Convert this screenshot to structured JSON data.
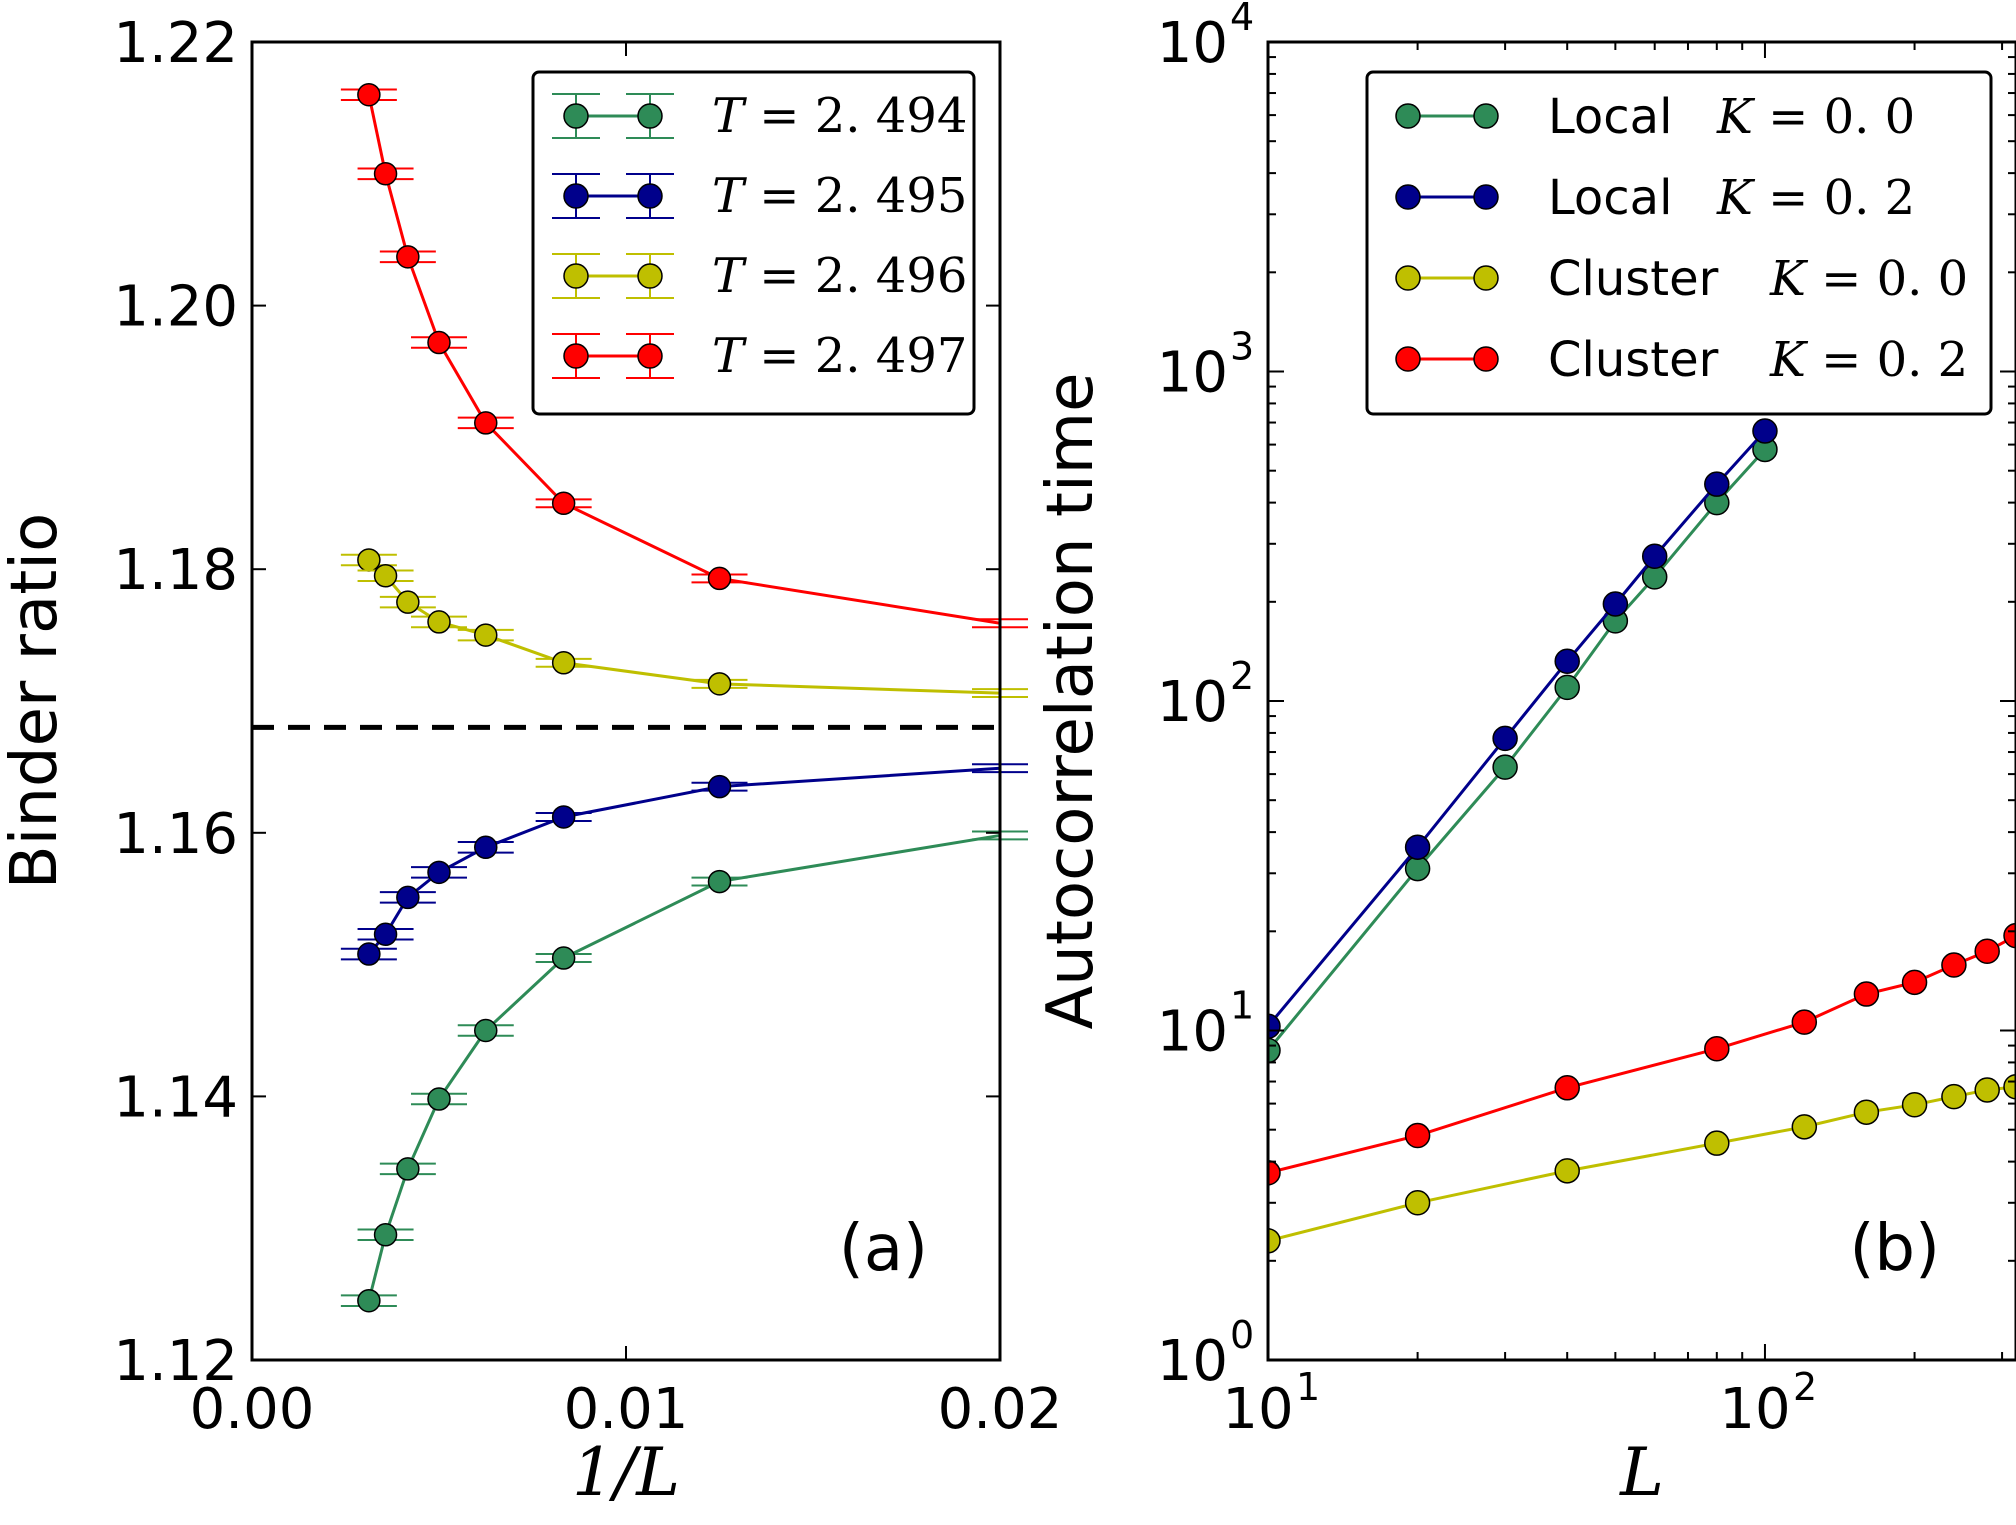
{
  "chart_data": [
    {
      "type": "line",
      "panel_label": "(a)",
      "xlabel": "1/L",
      "ylabel": "Binder ratio",
      "xlim": [
        0.0,
        0.02
      ],
      "ylim": [
        1.12,
        1.22
      ],
      "xticks": [
        0.0,
        0.01,
        0.02
      ],
      "xtick_labels": [
        "0.00",
        "0.01",
        "0.02"
      ],
      "yticks": [
        1.12,
        1.14,
        1.16,
        1.18,
        1.2,
        1.22
      ],
      "ytick_labels": [
        "1.12",
        "1.14",
        "1.16",
        "1.18",
        "1.20",
        "1.22"
      ],
      "grid": false,
      "legend_position": "top-right",
      "x": [
        0.003125,
        0.003571,
        0.004167,
        0.005,
        0.00625,
        0.008333,
        0.0125,
        0.02
      ],
      "series": [
        {
          "name": "T=2.494",
          "color": "#2e8b57",
          "values": [
            1.1245,
            1.1295,
            1.1345,
            1.1398,
            1.145,
            1.1505,
            1.1563,
            1.1598
          ],
          "errors": [
            0.0004,
            0.0004,
            0.0004,
            0.0004,
            0.0004,
            0.0003,
            0.0003,
            0.0003
          ]
        },
        {
          "name": "T=2.495",
          "color": "#00008b",
          "values": [
            1.1508,
            1.1523,
            1.1551,
            1.157,
            1.1589,
            1.1612,
            1.1635,
            1.1649
          ],
          "errors": [
            0.0004,
            0.0004,
            0.0004,
            0.0004,
            0.0004,
            0.0003,
            0.0003,
            0.0003
          ]
        },
        {
          "name": "T=2.496",
          "color": "#bfbf00",
          "values": [
            1.1807,
            1.1795,
            1.1775,
            1.176,
            1.175,
            1.1729,
            1.1713,
            1.1706
          ],
          "errors": [
            0.0004,
            0.0004,
            0.0004,
            0.0004,
            0.0004,
            0.0003,
            0.0003,
            0.0003
          ]
        },
        {
          "name": "T=2.497",
          "color": "#ff0000",
          "values": [
            1.216,
            1.21,
            1.2037,
            1.1972,
            1.1911,
            1.185,
            1.1793,
            1.1759
          ],
          "errors": [
            0.0004,
            0.0004,
            0.0004,
            0.0004,
            0.0004,
            0.0003,
            0.0003,
            0.0003
          ]
        }
      ],
      "reference_line": {
        "y": 1.168,
        "style": "dashed",
        "color": "#000000"
      }
    },
    {
      "type": "line",
      "panel_label": "(b)",
      "xlabel": "L",
      "ylabel": "Autocorrelation time",
      "xscale": "log",
      "yscale": "log",
      "xlim": [
        10,
        320
      ],
      "ylim": [
        1,
        10000
      ],
      "xticks": [
        10,
        100
      ],
      "xtick_labels": [
        {
          "base": "10",
          "exp": "1"
        },
        {
          "base": "10",
          "exp": "2"
        }
      ],
      "yticks": [
        1,
        10,
        100,
        1000,
        10000
      ],
      "ytick_labels": [
        {
          "base": "10",
          "exp": "0"
        },
        {
          "base": "10",
          "exp": "1"
        },
        {
          "base": "10",
          "exp": "2"
        },
        {
          "base": "10",
          "exp": "3"
        },
        {
          "base": "10",
          "exp": "4"
        }
      ],
      "grid": false,
      "legend_position": "top-right",
      "series": [
        {
          "name": "Local K=0.0",
          "label_text": "Local",
          "label_math": "K=0.0",
          "color": "#2e8b57",
          "x": [
            10,
            20,
            30,
            40,
            50,
            60,
            80,
            100
          ],
          "values": [
            8.7,
            31,
            63,
            110,
            175,
            238,
            400,
            580
          ]
        },
        {
          "name": "Local K=0.2",
          "label_text": "Local",
          "label_math": "K=0.2",
          "color": "#00008b",
          "x": [
            10,
            20,
            30,
            40,
            50,
            60,
            80,
            100
          ],
          "values": [
            10.3,
            36,
            77,
            132,
            197,
            275,
            455,
            660
          ]
        },
        {
          "name": "Cluster K=0.0",
          "label_text": "Cluster",
          "label_math": "K=0.0",
          "color": "#bfbf00",
          "x": [
            10,
            20,
            40,
            80,
            120,
            160,
            200,
            240,
            280,
            320
          ],
          "values": [
            2.3,
            3.0,
            3.75,
            4.55,
            5.1,
            5.65,
            5.95,
            6.3,
            6.6,
            6.75
          ]
        },
        {
          "name": "Cluster K=0.2",
          "label_text": "Cluster",
          "label_math": "K=0.2",
          "color": "#ff0000",
          "x": [
            10,
            20,
            40,
            80,
            120,
            160,
            200,
            240,
            280,
            320
          ],
          "values": [
            3.7,
            4.8,
            6.7,
            8.8,
            10.6,
            12.9,
            14.0,
            15.8,
            17.4,
            19.4
          ]
        }
      ]
    }
  ]
}
